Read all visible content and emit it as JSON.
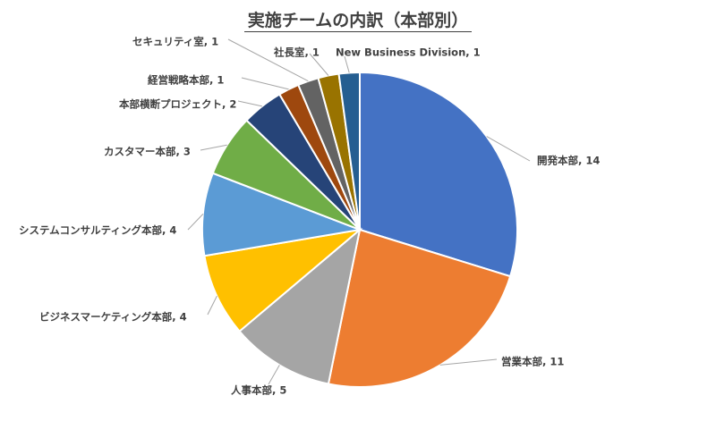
{
  "chart_data": {
    "type": "pie",
    "title": "実施チームの内訳（本部別）",
    "series": [
      {
        "name": "開発本部",
        "value": 14,
        "color": "#4472C4",
        "label": "開発本部, 14"
      },
      {
        "name": "営業本部",
        "value": 11,
        "color": "#ED7D31",
        "label": "営業本部, 11"
      },
      {
        "name": "人事本部",
        "value": 5,
        "color": "#A5A5A5",
        "label": "人事本部, 5"
      },
      {
        "name": "ビジネスマーケティング本部",
        "value": 4,
        "color": "#FFC000",
        "label": "ビジネスマーケティング本部, 4"
      },
      {
        "name": "システムコンサルティング本部",
        "value": 4,
        "color": "#5B9BD5",
        "label": "システムコンサルティング本部, 4"
      },
      {
        "name": "カスタマー本部",
        "value": 3,
        "color": "#70AD47",
        "label": "カスタマー本部, 3"
      },
      {
        "name": "本部横断プロジェクト",
        "value": 2,
        "color": "#264478",
        "label": "本部横断プロジェクト, 2"
      },
      {
        "name": "経営戦略本部",
        "value": 1,
        "color": "#9E480E",
        "label": "経営戦略本部, 1"
      },
      {
        "name": "セキュリティ室",
        "value": 1,
        "color": "#636363",
        "label": "セキュリティ室, 1"
      },
      {
        "name": "社長室",
        "value": 1,
        "color": "#997300",
        "label": "社長室, 1"
      },
      {
        "name": "New Business Division",
        "value": 1,
        "color": "#255E91",
        "label": "New Business Division, 1"
      }
    ],
    "start_angle_deg": 0,
    "direction": "clockwise",
    "legend": "none",
    "data_labels": "outside-with-leader-lines"
  }
}
